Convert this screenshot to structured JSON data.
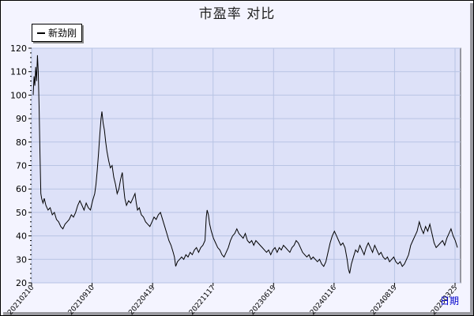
{
  "chart_data": {
    "type": "line",
    "title": "市盈率  对比",
    "xlabel": "日期",
    "ylabel": "",
    "ylim": [
      20,
      120
    ],
    "yticks": [
      20,
      30,
      40,
      50,
      60,
      70,
      80,
      90,
      100,
      110,
      120
    ],
    "x_tick_labels": [
      "20210210",
      "20210910",
      "20220419",
      "20221117",
      "20230619",
      "20240116",
      "20240819",
      "20250325"
    ],
    "grid": true,
    "legend": "top-left",
    "colors": {
      "plot_bg": "#dde1f8",
      "grid": "#b8c4e4",
      "line": "#000000",
      "xlabel": "#0000cc"
    },
    "series": [
      {
        "name": "新劲刚",
        "points": [
          [
            0.0,
            100
          ],
          [
            0.2,
            108
          ],
          [
            0.4,
            104
          ],
          [
            0.6,
            112
          ],
          [
            0.8,
            106
          ],
          [
            1.0,
            117
          ],
          [
            1.2,
            110
          ],
          [
            1.4,
            95
          ],
          [
            1.6,
            75
          ],
          [
            1.8,
            58
          ],
          [
            2.0,
            56
          ],
          [
            2.3,
            54
          ],
          [
            2.6,
            56
          ],
          [
            3.0,
            53
          ],
          [
            3.5,
            51
          ],
          [
            4.0,
            52
          ],
          [
            4.5,
            49
          ],
          [
            5.0,
            50
          ],
          [
            5.5,
            47
          ],
          [
            6.0,
            46
          ],
          [
            6.5,
            44
          ],
          [
            7.0,
            43
          ],
          [
            7.5,
            45
          ],
          [
            8.0,
            46
          ],
          [
            8.5,
            47
          ],
          [
            9.0,
            49
          ],
          [
            9.5,
            48
          ],
          [
            10.0,
            50
          ],
          [
            10.5,
            53
          ],
          [
            11.0,
            55
          ],
          [
            11.5,
            53
          ],
          [
            12.0,
            51
          ],
          [
            12.5,
            54
          ],
          [
            13.0,
            52
          ],
          [
            13.5,
            51
          ],
          [
            14.0,
            55
          ],
          [
            14.5,
            58
          ],
          [
            14.8,
            62
          ],
          [
            15.1,
            68
          ],
          [
            15.4,
            75
          ],
          [
            15.7,
            83
          ],
          [
            16.0,
            90
          ],
          [
            16.2,
            93
          ],
          [
            16.5,
            88
          ],
          [
            16.8,
            85
          ],
          [
            17.1,
            80
          ],
          [
            17.4,
            76
          ],
          [
            17.8,
            72
          ],
          [
            18.2,
            69
          ],
          [
            18.6,
            70
          ],
          [
            19.0,
            65
          ],
          [
            19.4,
            62
          ],
          [
            19.8,
            58
          ],
          [
            20.2,
            60
          ],
          [
            20.6,
            64
          ],
          [
            21.0,
            67
          ],
          [
            21.3,
            61
          ],
          [
            21.6,
            56
          ],
          [
            22.0,
            53
          ],
          [
            22.5,
            55
          ],
          [
            23.0,
            54
          ],
          [
            23.5,
            56
          ],
          [
            24.0,
            58
          ],
          [
            24.3,
            54
          ],
          [
            24.6,
            51
          ],
          [
            25.0,
            52
          ],
          [
            25.5,
            49
          ],
          [
            26.0,
            48
          ],
          [
            26.5,
            46
          ],
          [
            27.0,
            45
          ],
          [
            27.5,
            44
          ],
          [
            28.0,
            46
          ],
          [
            28.5,
            48
          ],
          [
            29.0,
            47
          ],
          [
            29.5,
            49
          ],
          [
            30.0,
            50
          ],
          [
            30.5,
            47
          ],
          [
            31.0,
            44
          ],
          [
            31.5,
            41
          ],
          [
            32.0,
            38
          ],
          [
            32.5,
            36
          ],
          [
            33.0,
            33
          ],
          [
            33.3,
            31
          ],
          [
            33.6,
            27
          ],
          [
            34.0,
            29
          ],
          [
            34.5,
            30
          ],
          [
            35.0,
            31
          ],
          [
            35.5,
            30
          ],
          [
            36.0,
            32
          ],
          [
            36.5,
            31
          ],
          [
            37.0,
            33
          ],
          [
            37.5,
            32
          ],
          [
            38.0,
            34
          ],
          [
            38.5,
            35
          ],
          [
            39.0,
            33
          ],
          [
            39.5,
            35
          ],
          [
            40.0,
            36
          ],
          [
            40.5,
            38
          ],
          [
            40.8,
            48
          ],
          [
            41.0,
            51
          ],
          [
            41.3,
            49
          ],
          [
            41.6,
            45
          ],
          [
            42.0,
            42
          ],
          [
            42.5,
            39
          ],
          [
            43.0,
            37
          ],
          [
            43.5,
            35
          ],
          [
            44.0,
            34
          ],
          [
            44.5,
            32
          ],
          [
            45.0,
            31
          ],
          [
            45.5,
            33
          ],
          [
            46.0,
            35
          ],
          [
            46.5,
            38
          ],
          [
            47.0,
            40
          ],
          [
            47.5,
            41
          ],
          [
            48.0,
            43
          ],
          [
            48.5,
            41
          ],
          [
            49.0,
            40
          ],
          [
            49.5,
            39
          ],
          [
            50.0,
            41
          ],
          [
            50.5,
            38
          ],
          [
            51.0,
            37
          ],
          [
            51.5,
            38
          ],
          [
            52.0,
            36
          ],
          [
            52.5,
            38
          ],
          [
            53.0,
            37
          ],
          [
            53.5,
            36
          ],
          [
            54.0,
            35
          ],
          [
            54.5,
            34
          ],
          [
            55.0,
            33
          ],
          [
            55.5,
            34
          ],
          [
            56.0,
            32
          ],
          [
            56.5,
            34
          ],
          [
            57.0,
            35
          ],
          [
            57.5,
            33
          ],
          [
            58.0,
            35
          ],
          [
            58.5,
            34
          ],
          [
            59.0,
            36
          ],
          [
            59.5,
            35
          ],
          [
            60.0,
            34
          ],
          [
            60.5,
            33
          ],
          [
            61.0,
            35
          ],
          [
            61.5,
            36
          ],
          [
            62.0,
            38
          ],
          [
            62.5,
            37
          ],
          [
            63.0,
            35
          ],
          [
            63.5,
            33
          ],
          [
            64.0,
            32
          ],
          [
            64.5,
            31
          ],
          [
            65.0,
            32
          ],
          [
            65.5,
            30
          ],
          [
            66.0,
            31
          ],
          [
            66.5,
            30
          ],
          [
            67.0,
            29
          ],
          [
            67.5,
            30
          ],
          [
            68.0,
            28
          ],
          [
            68.5,
            27
          ],
          [
            69.0,
            29
          ],
          [
            69.5,
            33
          ],
          [
            70.0,
            37
          ],
          [
            70.5,
            40
          ],
          [
            71.0,
            42
          ],
          [
            71.5,
            40
          ],
          [
            72.0,
            38
          ],
          [
            72.5,
            36
          ],
          [
            73.0,
            37
          ],
          [
            73.5,
            35
          ],
          [
            74.0,
            30
          ],
          [
            74.3,
            26
          ],
          [
            74.6,
            24
          ],
          [
            75.0,
            28
          ],
          [
            75.5,
            31
          ],
          [
            76.0,
            34
          ],
          [
            76.5,
            33
          ],
          [
            77.0,
            36
          ],
          [
            77.5,
            34
          ],
          [
            78.0,
            32
          ],
          [
            78.5,
            35
          ],
          [
            79.0,
            37
          ],
          [
            79.5,
            35
          ],
          [
            80.0,
            33
          ],
          [
            80.5,
            36
          ],
          [
            81.0,
            34
          ],
          [
            81.5,
            32
          ],
          [
            82.0,
            33
          ],
          [
            82.5,
            31
          ],
          [
            83.0,
            30
          ],
          [
            83.5,
            31
          ],
          [
            84.0,
            29
          ],
          [
            84.5,
            30
          ],
          [
            85.0,
            31
          ],
          [
            85.5,
            29
          ],
          [
            86.0,
            28
          ],
          [
            86.5,
            29
          ],
          [
            87.0,
            27
          ],
          [
            87.5,
            28
          ],
          [
            88.0,
            30
          ],
          [
            88.5,
            32
          ],
          [
            89.0,
            36
          ],
          [
            89.5,
            38
          ],
          [
            90.0,
            40
          ],
          [
            90.5,
            42
          ],
          [
            91.0,
            46
          ],
          [
            91.5,
            43
          ],
          [
            92.0,
            41
          ],
          [
            92.5,
            44
          ],
          [
            93.0,
            42
          ],
          [
            93.5,
            45
          ],
          [
            94.0,
            41
          ],
          [
            94.5,
            37
          ],
          [
            95.0,
            35
          ],
          [
            95.5,
            36
          ],
          [
            96.0,
            37
          ],
          [
            96.5,
            38
          ],
          [
            97.0,
            36
          ],
          [
            97.5,
            39
          ],
          [
            98.0,
            41
          ],
          [
            98.5,
            43
          ],
          [
            99.0,
            40
          ],
          [
            99.5,
            38
          ],
          [
            100.0,
            35
          ]
        ]
      }
    ]
  }
}
